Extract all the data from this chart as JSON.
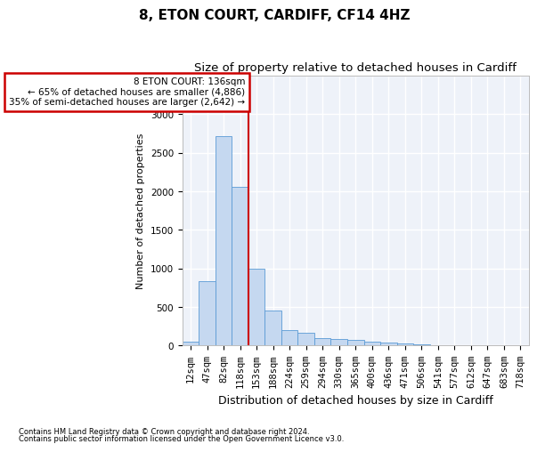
{
  "title": "8, ETON COURT, CARDIFF, CF14 4HZ",
  "subtitle": "Size of property relative to detached houses in Cardiff",
  "xlabel": "Distribution of detached houses by size in Cardiff",
  "ylabel": "Number of detached properties",
  "footnote1": "Contains HM Land Registry data © Crown copyright and database right 2024.",
  "footnote2": "Contains public sector information licensed under the Open Government Licence v3.0.",
  "categories": [
    "12sqm",
    "47sqm",
    "82sqm",
    "118sqm",
    "153sqm",
    "188sqm",
    "224sqm",
    "259sqm",
    "294sqm",
    "330sqm",
    "365sqm",
    "400sqm",
    "436sqm",
    "471sqm",
    "506sqm",
    "541sqm",
    "577sqm",
    "612sqm",
    "647sqm",
    "683sqm",
    "718sqm"
  ],
  "values": [
    50,
    840,
    2720,
    2060,
    1000,
    450,
    200,
    170,
    100,
    90,
    75,
    50,
    40,
    30,
    15,
    5,
    0,
    0,
    0,
    0,
    0
  ],
  "bar_color": "#c5d8f0",
  "bar_edge_color": "#5b9bd5",
  "annotation_text": "8 ETON COURT: 136sqm\n← 65% of detached houses are smaller (4,886)\n35% of semi-detached houses are larger (2,642) →",
  "annotation_box_color": "#ffffff",
  "annotation_box_edge_color": "#cc0000",
  "vline_color": "#cc0000",
  "vline_x": 3.5,
  "ylim": [
    0,
    3500
  ],
  "yticks": [
    0,
    500,
    1000,
    1500,
    2000,
    2500,
    3000,
    3500
  ],
  "bg_color": "#eef2f9",
  "grid_color": "#ffffff",
  "title_fontsize": 11,
  "subtitle_fontsize": 9.5,
  "tick_fontsize": 7.5,
  "ylabel_fontsize": 8,
  "xlabel_fontsize": 9
}
